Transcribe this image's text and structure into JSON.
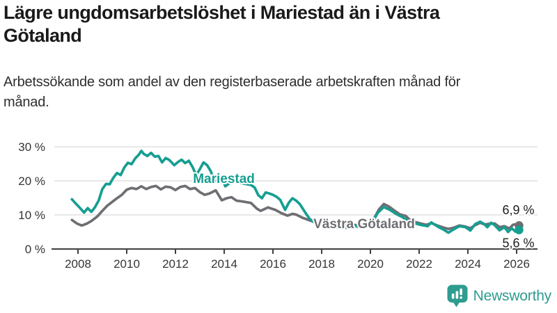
{
  "header": {
    "title": "Lägre ungdomsarbetslöshet i Mariestad än i Västra Götaland",
    "subtitle": "Arbetssökande som andel av den registerbaserade arbetskraften månad för månad."
  },
  "footer": {
    "brand": "Newsworthy"
  },
  "colors": {
    "mariestad": "#169e91",
    "vastra_gotaland": "#6e6e73",
    "grid": "#dbdbdb",
    "axis": "#3f3f3f",
    "value_label": "#1c1c1c",
    "brand_teal": "#2e9c90"
  },
  "chart_data": {
    "type": "line",
    "title": "Lägre ungdomsarbetslöshet i Mariestad än i Västra Götaland",
    "subtitle": "Arbetssökande som andel av den registerbaserade arbetskraften månad för månad.",
    "xlabel": "",
    "ylabel": "",
    "xlim": [
      2007.6,
      2026.7
    ],
    "ylim": [
      0,
      31
    ],
    "grid": "horizontal",
    "legend_position": "inline-labels",
    "x_ticks": [
      2008,
      2010,
      2012,
      2014,
      2016,
      2018,
      2020,
      2022,
      2024,
      2026
    ],
    "y_ticks": [
      {
        "value": 0,
        "label": "0 %"
      },
      {
        "value": 10,
        "label": "10 %"
      },
      {
        "value": 20,
        "label": "20 %"
      },
      {
        "value": 30,
        "label": "30 %"
      }
    ],
    "series": [
      {
        "name": "Mariestad",
        "color_key": "mariestad",
        "end_value": 5.6,
        "end_label": "5,6 %",
        "end_label_position": "below",
        "name_label_pos": {
          "x": 2012.72,
          "y": 19.4
        },
        "points": [
          [
            2007.75,
            14.6
          ],
          [
            2007.9,
            13.4
          ],
          [
            2008.05,
            12.3
          ],
          [
            2008.25,
            10.7
          ],
          [
            2008.4,
            12.0
          ],
          [
            2008.55,
            10.9
          ],
          [
            2008.7,
            12.3
          ],
          [
            2008.85,
            14.2
          ],
          [
            2009.0,
            17.6
          ],
          [
            2009.15,
            19.1
          ],
          [
            2009.3,
            19.0
          ],
          [
            2009.45,
            20.9
          ],
          [
            2009.6,
            22.3
          ],
          [
            2009.75,
            21.7
          ],
          [
            2009.9,
            23.9
          ],
          [
            2010.05,
            25.3
          ],
          [
            2010.2,
            24.9
          ],
          [
            2010.35,
            26.6
          ],
          [
            2010.5,
            27.7
          ],
          [
            2010.6,
            28.8
          ],
          [
            2010.7,
            27.9
          ],
          [
            2010.85,
            27.3
          ],
          [
            2011.0,
            28.2
          ],
          [
            2011.15,
            27.1
          ],
          [
            2011.3,
            27.3
          ],
          [
            2011.45,
            25.4
          ],
          [
            2011.6,
            26.7
          ],
          [
            2011.75,
            26.1
          ],
          [
            2011.95,
            24.6
          ],
          [
            2012.1,
            25.5
          ],
          [
            2012.25,
            26.2
          ],
          [
            2012.4,
            25.2
          ],
          [
            2012.55,
            25.9
          ],
          [
            2012.7,
            24.1
          ],
          [
            2012.85,
            21.7
          ],
          [
            2013.0,
            23.4
          ],
          [
            2013.15,
            25.4
          ],
          [
            2013.3,
            24.6
          ],
          [
            2013.45,
            22.8
          ],
          [
            2013.6,
            19.9
          ],
          [
            2013.75,
            20.3
          ],
          [
            2013.9,
            20.6
          ],
          [
            2014.05,
            18.4
          ],
          [
            2014.2,
            19.2
          ],
          [
            2014.35,
            19.7
          ],
          [
            2014.5,
            19.9
          ],
          [
            2014.65,
            19.4
          ],
          [
            2014.8,
            19.2
          ],
          [
            2014.95,
            19.0
          ],
          [
            2015.1,
            18.8
          ],
          [
            2015.25,
            18.0
          ],
          [
            2015.4,
            15.8
          ],
          [
            2015.55,
            14.9
          ],
          [
            2015.7,
            16.6
          ],
          [
            2015.85,
            16.3
          ],
          [
            2016.0,
            15.9
          ],
          [
            2016.15,
            15.3
          ],
          [
            2016.3,
            14.4
          ],
          [
            2016.5,
            11.5
          ],
          [
            2016.65,
            13.6
          ],
          [
            2016.8,
            14.9
          ],
          [
            2016.95,
            14.2
          ],
          [
            2017.1,
            13.2
          ],
          [
            2017.3,
            11.0
          ],
          [
            2017.5,
            8.9
          ],
          [
            2017.65,
            8.0
          ],
          [
            2017.9,
            7.5
          ],
          [
            2018.15,
            7.0
          ],
          [
            2018.4,
            6.6
          ],
          [
            2018.7,
            6.3
          ],
          [
            2019.0,
            6.2
          ],
          [
            2019.3,
            6.9
          ],
          [
            2019.55,
            6.4
          ],
          [
            2019.8,
            6.7
          ],
          [
            2020.05,
            7.4
          ],
          [
            2020.3,
            10.6
          ],
          [
            2020.55,
            12.3
          ],
          [
            2020.8,
            11.5
          ],
          [
            2021.05,
            10.3
          ],
          [
            2021.3,
            9.4
          ],
          [
            2021.55,
            8.3
          ],
          [
            2021.8,
            7.6
          ],
          [
            2022.05,
            7.1
          ],
          [
            2022.35,
            6.7
          ],
          [
            2022.5,
            7.8
          ],
          [
            2022.8,
            6.4
          ],
          [
            2023.0,
            5.7
          ],
          [
            2023.2,
            4.8
          ],
          [
            2023.4,
            5.7
          ],
          [
            2023.65,
            6.7
          ],
          [
            2023.9,
            6.4
          ],
          [
            2024.1,
            5.4
          ],
          [
            2024.3,
            7.3
          ],
          [
            2024.5,
            8.0
          ],
          [
            2024.65,
            7.4
          ],
          [
            2024.8,
            6.4
          ],
          [
            2024.95,
            7.7
          ],
          [
            2025.1,
            7.0
          ],
          [
            2025.3,
            5.5
          ],
          [
            2025.5,
            6.4
          ],
          [
            2025.65,
            5.0
          ],
          [
            2025.8,
            6.1
          ],
          [
            2025.95,
            5.1
          ],
          [
            2026.1,
            5.6
          ]
        ]
      },
      {
        "name": "Västra Götaland",
        "color_key": "vastra_gotaland",
        "end_value": 6.9,
        "end_label": "6,9 %",
        "end_label_position": "above",
        "name_label_pos": {
          "x": 2017.66,
          "y": 6.1
        },
        "points": [
          [
            2007.75,
            8.5
          ],
          [
            2007.95,
            7.5
          ],
          [
            2008.15,
            6.9
          ],
          [
            2008.35,
            7.4
          ],
          [
            2008.55,
            8.2
          ],
          [
            2008.8,
            9.6
          ],
          [
            2009.0,
            11.2
          ],
          [
            2009.2,
            12.7
          ],
          [
            2009.4,
            13.8
          ],
          [
            2009.6,
            14.9
          ],
          [
            2009.8,
            15.9
          ],
          [
            2010.0,
            17.4
          ],
          [
            2010.2,
            17.9
          ],
          [
            2010.4,
            17.6
          ],
          [
            2010.6,
            18.4
          ],
          [
            2010.8,
            17.6
          ],
          [
            2011.0,
            18.2
          ],
          [
            2011.2,
            18.5
          ],
          [
            2011.4,
            17.5
          ],
          [
            2011.6,
            18.3
          ],
          [
            2011.8,
            18.1
          ],
          [
            2012.0,
            17.3
          ],
          [
            2012.2,
            18.2
          ],
          [
            2012.4,
            18.5
          ],
          [
            2012.6,
            17.6
          ],
          [
            2012.8,
            17.9
          ],
          [
            2013.0,
            16.7
          ],
          [
            2013.2,
            15.9
          ],
          [
            2013.4,
            16.3
          ],
          [
            2013.65,
            17.2
          ],
          [
            2013.9,
            14.3
          ],
          [
            2014.1,
            14.9
          ],
          [
            2014.3,
            15.2
          ],
          [
            2014.5,
            14.2
          ],
          [
            2014.8,
            13.9
          ],
          [
            2015.1,
            13.5
          ],
          [
            2015.35,
            11.8
          ],
          [
            2015.5,
            11.2
          ],
          [
            2015.8,
            12.2
          ],
          [
            2016.1,
            11.5
          ],
          [
            2016.35,
            10.5
          ],
          [
            2016.6,
            9.8
          ],
          [
            2016.8,
            10.3
          ],
          [
            2016.95,
            10.1
          ],
          [
            2017.2,
            9.2
          ],
          [
            2017.5,
            8.4
          ],
          [
            2017.7,
            8.0
          ],
          [
            2018.0,
            7.6
          ],
          [
            2018.3,
            7.2
          ],
          [
            2018.6,
            7.0
          ],
          [
            2018.9,
            6.9
          ],
          [
            2019.2,
            7.1
          ],
          [
            2019.5,
            7.0
          ],
          [
            2019.8,
            7.3
          ],
          [
            2020.1,
            8.3
          ],
          [
            2020.35,
            11.6
          ],
          [
            2020.55,
            13.2
          ],
          [
            2020.75,
            12.5
          ],
          [
            2021.0,
            11.2
          ],
          [
            2021.2,
            10.2
          ],
          [
            2021.45,
            9.7
          ],
          [
            2021.65,
            8.3
          ],
          [
            2021.9,
            7.8
          ],
          [
            2022.1,
            7.4
          ],
          [
            2022.3,
            7.1
          ],
          [
            2022.5,
            7.6
          ],
          [
            2022.75,
            6.9
          ],
          [
            2023.0,
            6.3
          ],
          [
            2023.2,
            5.9
          ],
          [
            2023.4,
            6.2
          ],
          [
            2023.65,
            6.9
          ],
          [
            2023.9,
            6.6
          ],
          [
            2024.1,
            6.1
          ],
          [
            2024.3,
            7.0
          ],
          [
            2024.5,
            7.7
          ],
          [
            2024.7,
            7.2
          ],
          [
            2024.9,
            7.4
          ],
          [
            2025.1,
            7.5
          ],
          [
            2025.3,
            6.4
          ],
          [
            2025.5,
            6.7
          ],
          [
            2025.7,
            6.0
          ],
          [
            2025.85,
            7.1
          ],
          [
            2026.0,
            7.3
          ],
          [
            2026.1,
            6.9
          ]
        ]
      }
    ]
  }
}
